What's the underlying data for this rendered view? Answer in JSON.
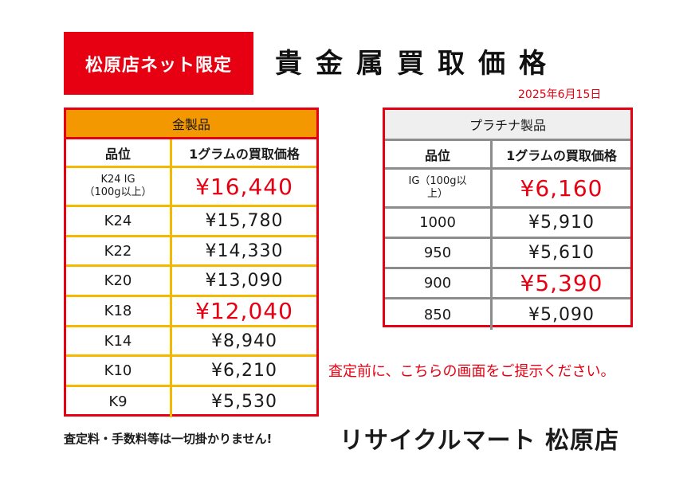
{
  "badge": "松原店ネット限定",
  "title": "貴金属買取価格",
  "date": "2025年6月15日",
  "gold": {
    "header": "金製品",
    "col_grade": "品位",
    "col_price": "1グラムの買取価格",
    "rows": [
      {
        "grade": "K24 IG\n（100g以上）",
        "price": "¥16,440",
        "highlight": true
      },
      {
        "grade": "K24",
        "price": "¥15,780",
        "highlight": false
      },
      {
        "grade": "K22",
        "price": "¥14,330",
        "highlight": false
      },
      {
        "grade": "K20",
        "price": "¥13,090",
        "highlight": false
      },
      {
        "grade": "K18",
        "price": "¥12,040",
        "highlight": true
      },
      {
        "grade": "K14",
        "price": "¥8,940",
        "highlight": false
      },
      {
        "grade": "K10",
        "price": "¥6,210",
        "highlight": false
      },
      {
        "grade": "K9",
        "price": "¥5,530",
        "highlight": false
      }
    ]
  },
  "platinum": {
    "header": "プラチナ製品",
    "col_grade": "品位",
    "col_price": "1グラムの買取価格",
    "rows": [
      {
        "grade": "IG（100g以\n上）",
        "price": "¥6,160",
        "highlight": true
      },
      {
        "grade": "1000",
        "price": "¥5,910",
        "highlight": false
      },
      {
        "grade": "950",
        "price": "¥5,610",
        "highlight": false
      },
      {
        "grade": "900",
        "price": "¥5,390",
        "highlight": true
      },
      {
        "grade": "850",
        "price": "¥5,090",
        "highlight": false
      }
    ]
  },
  "notice": "査定前に、こちらの画面をご提示ください。",
  "footnote": "査定料・手数料等は一切掛かりません!",
  "store": "リサイクルマート 松原店",
  "colors": {
    "red": "#e60012",
    "gold_header": "#f39800",
    "gold_line": "#f5b800",
    "plat_line": "#8c8c8c"
  }
}
